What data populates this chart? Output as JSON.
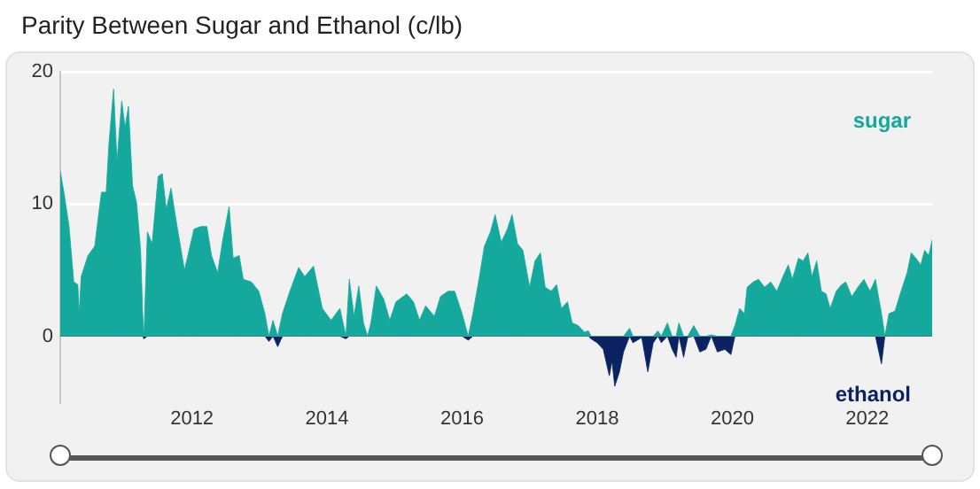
{
  "chart_data": {
    "type": "area",
    "title": "Parity Between Sugar and Ethanol (c/lb)",
    "x": [
      2010.05,
      2010.11,
      2010.18,
      2010.25,
      2010.31,
      2010.33,
      2010.36,
      2010.46,
      2010.56,
      2010.66,
      2010.73,
      2010.77,
      2010.84,
      2010.89,
      2010.96,
      2011.01,
      2011.06,
      2011.12,
      2011.18,
      2011.24,
      2011.27,
      2011.29,
      2011.34,
      2011.41,
      2011.5,
      2011.56,
      2011.62,
      2011.69,
      2011.78,
      2011.89,
      2012.03,
      2012.13,
      2012.22,
      2012.29,
      2012.38,
      2012.46,
      2012.55,
      2012.61,
      2012.7,
      2012.76,
      2012.88,
      2012.99,
      2013.08,
      2013.14,
      2013.2,
      2013.27,
      2013.34,
      2013.45,
      2013.58,
      2013.67,
      2013.8,
      2013.93,
      2014.06,
      2014.19,
      2014.28,
      2014.33,
      2014.4,
      2014.47,
      2014.54,
      2014.6,
      2014.65,
      2014.73,
      2014.84,
      2014.93,
      2015.02,
      2015.18,
      2015.28,
      2015.37,
      2015.46,
      2015.59,
      2015.68,
      2015.79,
      2015.89,
      2016,
      2016.09,
      2016.16,
      2016.25,
      2016.33,
      2016.42,
      2016.49,
      2016.58,
      2016.67,
      2016.74,
      2016.82,
      2016.9,
      2017,
      2017.08,
      2017.16,
      2017.23,
      2017.32,
      2017.4,
      2017.47,
      2017.56,
      2017.63,
      2017.72,
      2017.81,
      2017.87,
      2017.91,
      2018,
      2018.09,
      2018.18,
      2018.22,
      2018.26,
      2018.33,
      2018.39,
      2018.48,
      2018.53,
      2018.66,
      2018.75,
      2018.83,
      2018.9,
      2018.95,
      2019.04,
      2019.11,
      2019.17,
      2019.21,
      2019.28,
      2019.34,
      2019.43,
      2019.52,
      2019.61,
      2019.69,
      2019.78,
      2019.89,
      2019.98,
      2020.04,
      2020.11,
      2020.18,
      2020.22,
      2020.31,
      2020.39,
      2020.48,
      2020.57,
      2020.66,
      2020.75,
      2020.83,
      2020.89,
      2020.98,
      2021.05,
      2021.12,
      2021.18,
      2021.25,
      2021.32,
      2021.39,
      2021.45,
      2021.54,
      2021.62,
      2021.68,
      2021.77,
      2021.86,
      2021.95,
      2022.04,
      2022.12,
      2022.21,
      2022.26,
      2022.32,
      2022.41,
      2022.5,
      2022.59,
      2022.65,
      2022.72,
      2022.79,
      2022.85,
      2022.91,
      2022.96
    ],
    "series": [
      {
        "name": "sugar",
        "color": "#14a99c",
        "values": [
          12.5,
          10.7,
          8.3,
          4.1,
          3.9,
          1.7,
          4.5,
          6.1,
          6.8,
          10.9,
          10.9,
          14.5,
          18.7,
          13.2,
          17.8,
          15.8,
          17.4,
          11.4,
          10.1,
          6.5,
          1.7,
          0,
          7.9,
          7.0,
          12.1,
          12.3,
          9.6,
          11.2,
          8.3,
          5.0,
          8.1,
          8.3,
          8.3,
          6.1,
          4.8,
          7.4,
          9.8,
          5.9,
          6.1,
          4.3,
          4.1,
          3.4,
          1.7,
          0,
          1.2,
          0,
          1.7,
          3.4,
          5.2,
          4.5,
          5.3,
          2.1,
          1.2,
          2.1,
          0,
          4.3,
          1.5,
          3.8,
          1.0,
          0,
          1.0,
          3.8,
          2.8,
          1.2,
          2.6,
          3.2,
          2.6,
          1.2,
          2.3,
          1.5,
          3.0,
          3.4,
          3.4,
          1.7,
          0,
          1.7,
          4.3,
          6.8,
          7.9,
          9.2,
          7.1,
          8.1,
          9.2,
          7.0,
          6.5,
          3.7,
          5.7,
          6.3,
          3.7,
          3.4,
          3.9,
          2.1,
          2.6,
          1.0,
          0.8,
          0.3,
          0.4,
          0,
          0,
          0,
          0,
          0,
          0,
          0,
          0,
          0.6,
          0,
          0,
          0,
          0,
          0.4,
          0,
          1.0,
          0,
          0,
          1.0,
          0,
          0,
          0.8,
          0,
          0,
          0.1,
          0,
          0,
          0,
          0.8,
          2.1,
          1.7,
          3.7,
          4.1,
          4.3,
          3.7,
          4.1,
          3.4,
          4.5,
          5.4,
          4.3,
          5.9,
          5.7,
          6.3,
          4.5,
          5.7,
          3.4,
          3.2,
          2.1,
          3.4,
          3.9,
          4.1,
          3.0,
          3.7,
          4.3,
          3.4,
          4.3,
          1.7,
          0,
          1.7,
          1.9,
          3.4,
          4.8,
          6.3,
          5.9,
          5.4,
          6.5,
          6.1,
          7.3
        ]
      },
      {
        "name": "ethanol",
        "color": "#0b2461",
        "values": [
          0,
          0,
          0,
          0,
          0,
          0,
          0,
          0,
          0,
          0,
          0,
          0,
          0,
          0,
          0,
          0,
          0,
          0,
          0,
          0,
          0,
          -0.2,
          0,
          0,
          0,
          0,
          0,
          0,
          0,
          0,
          0,
          0,
          0,
          0,
          0,
          0,
          0,
          0,
          0,
          0,
          0,
          0,
          0,
          -0.4,
          0,
          -0.8,
          0,
          0,
          0,
          0,
          0,
          0,
          0,
          0,
          -0.2,
          0,
          0,
          0,
          0,
          0,
          0,
          0,
          0,
          0,
          0,
          0,
          0,
          0,
          0,
          0,
          0,
          0,
          0,
          0,
          -0.3,
          0,
          0,
          0,
          0,
          0,
          0,
          0,
          0,
          0,
          0,
          0,
          0,
          0,
          0,
          0,
          0,
          0,
          0,
          0,
          0,
          0,
          0,
          -0.2,
          -0.5,
          -1.0,
          -3.0,
          -1.9,
          -3.8,
          -2.7,
          -1.2,
          0,
          -0.5,
          -0.1,
          -2.7,
          -0.5,
          0,
          -0.5,
          0,
          -1.0,
          -1.6,
          0,
          -1.6,
          -0.1,
          0,
          -1.2,
          -1.0,
          0,
          -1.2,
          -1.0,
          -1.4,
          0,
          0,
          0,
          0,
          0,
          0,
          0,
          0,
          0,
          0,
          0,
          0,
          0,
          0,
          0,
          0,
          0,
          0,
          0,
          0,
          0,
          0,
          0,
          0,
          0,
          0,
          0,
          0,
          -2.1,
          0,
          0,
          0,
          0,
          0,
          0,
          0,
          0,
          0,
          0,
          0
        ]
      }
    ],
    "xlim": [
      2010.05,
      2022.96
    ],
    "xticks": [
      2012,
      2014,
      2016,
      2018,
      2020,
      2022
    ],
    "ylim": [
      -5,
      20
    ],
    "yticks": [
      0,
      10,
      20
    ],
    "grid": "y",
    "marker": "none"
  }
}
